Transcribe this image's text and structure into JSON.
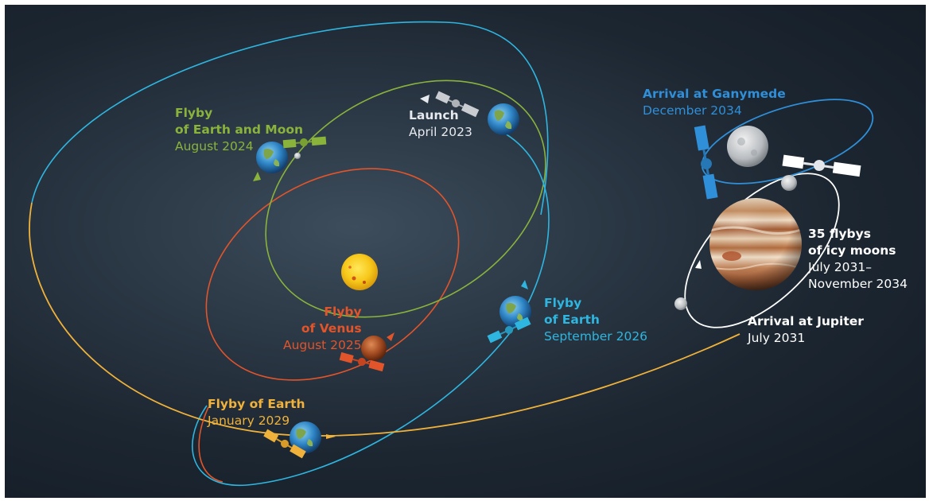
{
  "labels": {
    "launch": {
      "title": "Launch",
      "date": "April 2023"
    },
    "flyby_earth_moon": {
      "title_line1": "Flyby",
      "title_line2": "of Earth and Moon",
      "date": "August 2024"
    },
    "flyby_venus": {
      "title_line1": "Flyby",
      "title_line2": "of Venus",
      "date": "August 2025"
    },
    "flyby_earth_2026": {
      "title_line1": "Flyby",
      "title_line2": "of Earth",
      "date": "September 2026"
    },
    "flyby_earth_2029": {
      "title": "Flyby of Earth",
      "date": "January 2029"
    },
    "arrival_jupiter": {
      "title": "Arrival at Jupiter",
      "date": "July 2031"
    },
    "flybys_icy_moons": {
      "title_line1": "35 flybys",
      "title_line2": "of icy moons",
      "date_line1": "July 2031–",
      "date_line2": "November 2034"
    },
    "arrival_ganymede": {
      "title": "Arrival at Ganymede",
      "date": "December 2034"
    }
  },
  "colors": {
    "launch": "#e6e9ed",
    "earth_moon": "#8ab33c",
    "venus": "#e2542a",
    "earth_2026": "#2fb6e0",
    "earth_2029": "#f0b23a",
    "ganymede": "#2f8fd8",
    "jupiter": "#ffffff"
  },
  "icons": [
    "sun-icon",
    "earth-icon",
    "venus-icon",
    "jupiter-icon",
    "ganymede-icon",
    "moon-icon",
    "spacecraft-icon"
  ]
}
